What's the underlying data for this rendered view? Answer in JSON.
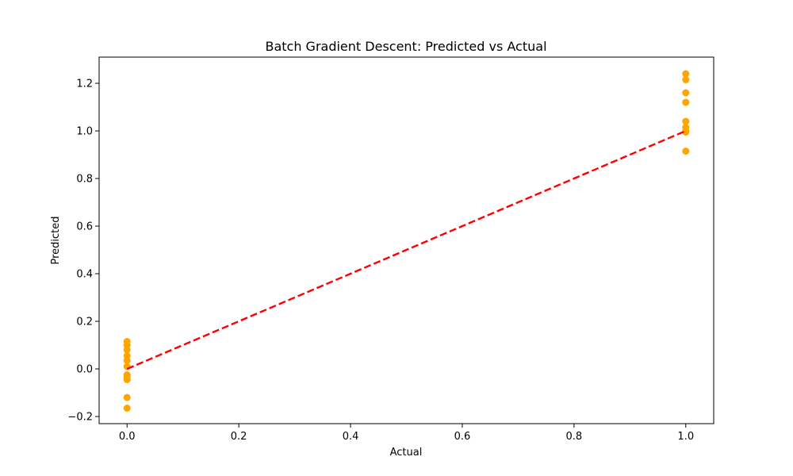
{
  "chart_data": {
    "type": "scatter",
    "title": "Batch Gradient Descent: Predicted vs Actual",
    "xlabel": "Actual",
    "ylabel": "Predicted",
    "xlim": [
      -0.05,
      1.05
    ],
    "ylim": [
      -0.23,
      1.31
    ],
    "grid": false,
    "x_ticks": [
      {
        "value": 0.0,
        "label": "0.0"
      },
      {
        "value": 0.2,
        "label": "0.2"
      },
      {
        "value": 0.4,
        "label": "0.4"
      },
      {
        "value": 0.6,
        "label": "0.6"
      },
      {
        "value": 0.8,
        "label": "0.8"
      },
      {
        "value": 1.0,
        "label": "1.0"
      }
    ],
    "y_ticks": [
      {
        "value": -0.2,
        "label": "−0.2"
      },
      {
        "value": 0.0,
        "label": "0.0"
      },
      {
        "value": 0.2,
        "label": "0.2"
      },
      {
        "value": 0.4,
        "label": "0.4"
      },
      {
        "value": 0.6,
        "label": "0.6"
      },
      {
        "value": 0.8,
        "label": "0.8"
      },
      {
        "value": 1.0,
        "label": "1.0"
      },
      {
        "value": 1.2,
        "label": "1.2"
      }
    ],
    "series": [
      {
        "color": "#ffa500",
        "points": [
          {
            "x": 0,
            "y": 0.115
          },
          {
            "x": 0,
            "y": 0.1
          },
          {
            "x": 0,
            "y": 0.08
          },
          {
            "x": 0,
            "y": 0.055
          },
          {
            "x": 0,
            "y": 0.035
          },
          {
            "x": 0,
            "y": 0.01
          },
          {
            "x": 0,
            "y": -0.025
          },
          {
            "x": 0,
            "y": -0.035
          },
          {
            "x": 0,
            "y": -0.045
          },
          {
            "x": 0,
            "y": -0.12
          },
          {
            "x": 0,
            "y": -0.165
          },
          {
            "x": 1,
            "y": 1.24
          },
          {
            "x": 1,
            "y": 1.215
          },
          {
            "x": 1,
            "y": 1.16
          },
          {
            "x": 1,
            "y": 1.12
          },
          {
            "x": 1,
            "y": 1.04
          },
          {
            "x": 1,
            "y": 1.015
          },
          {
            "x": 1,
            "y": 1.0
          },
          {
            "x": 1,
            "y": 0.995
          },
          {
            "x": 1,
            "y": 0.915
          }
        ]
      }
    ],
    "reference_line": {
      "x": [
        0,
        1
      ],
      "y": [
        0,
        1
      ],
      "color": "#ff0000",
      "style": "dashed"
    }
  }
}
